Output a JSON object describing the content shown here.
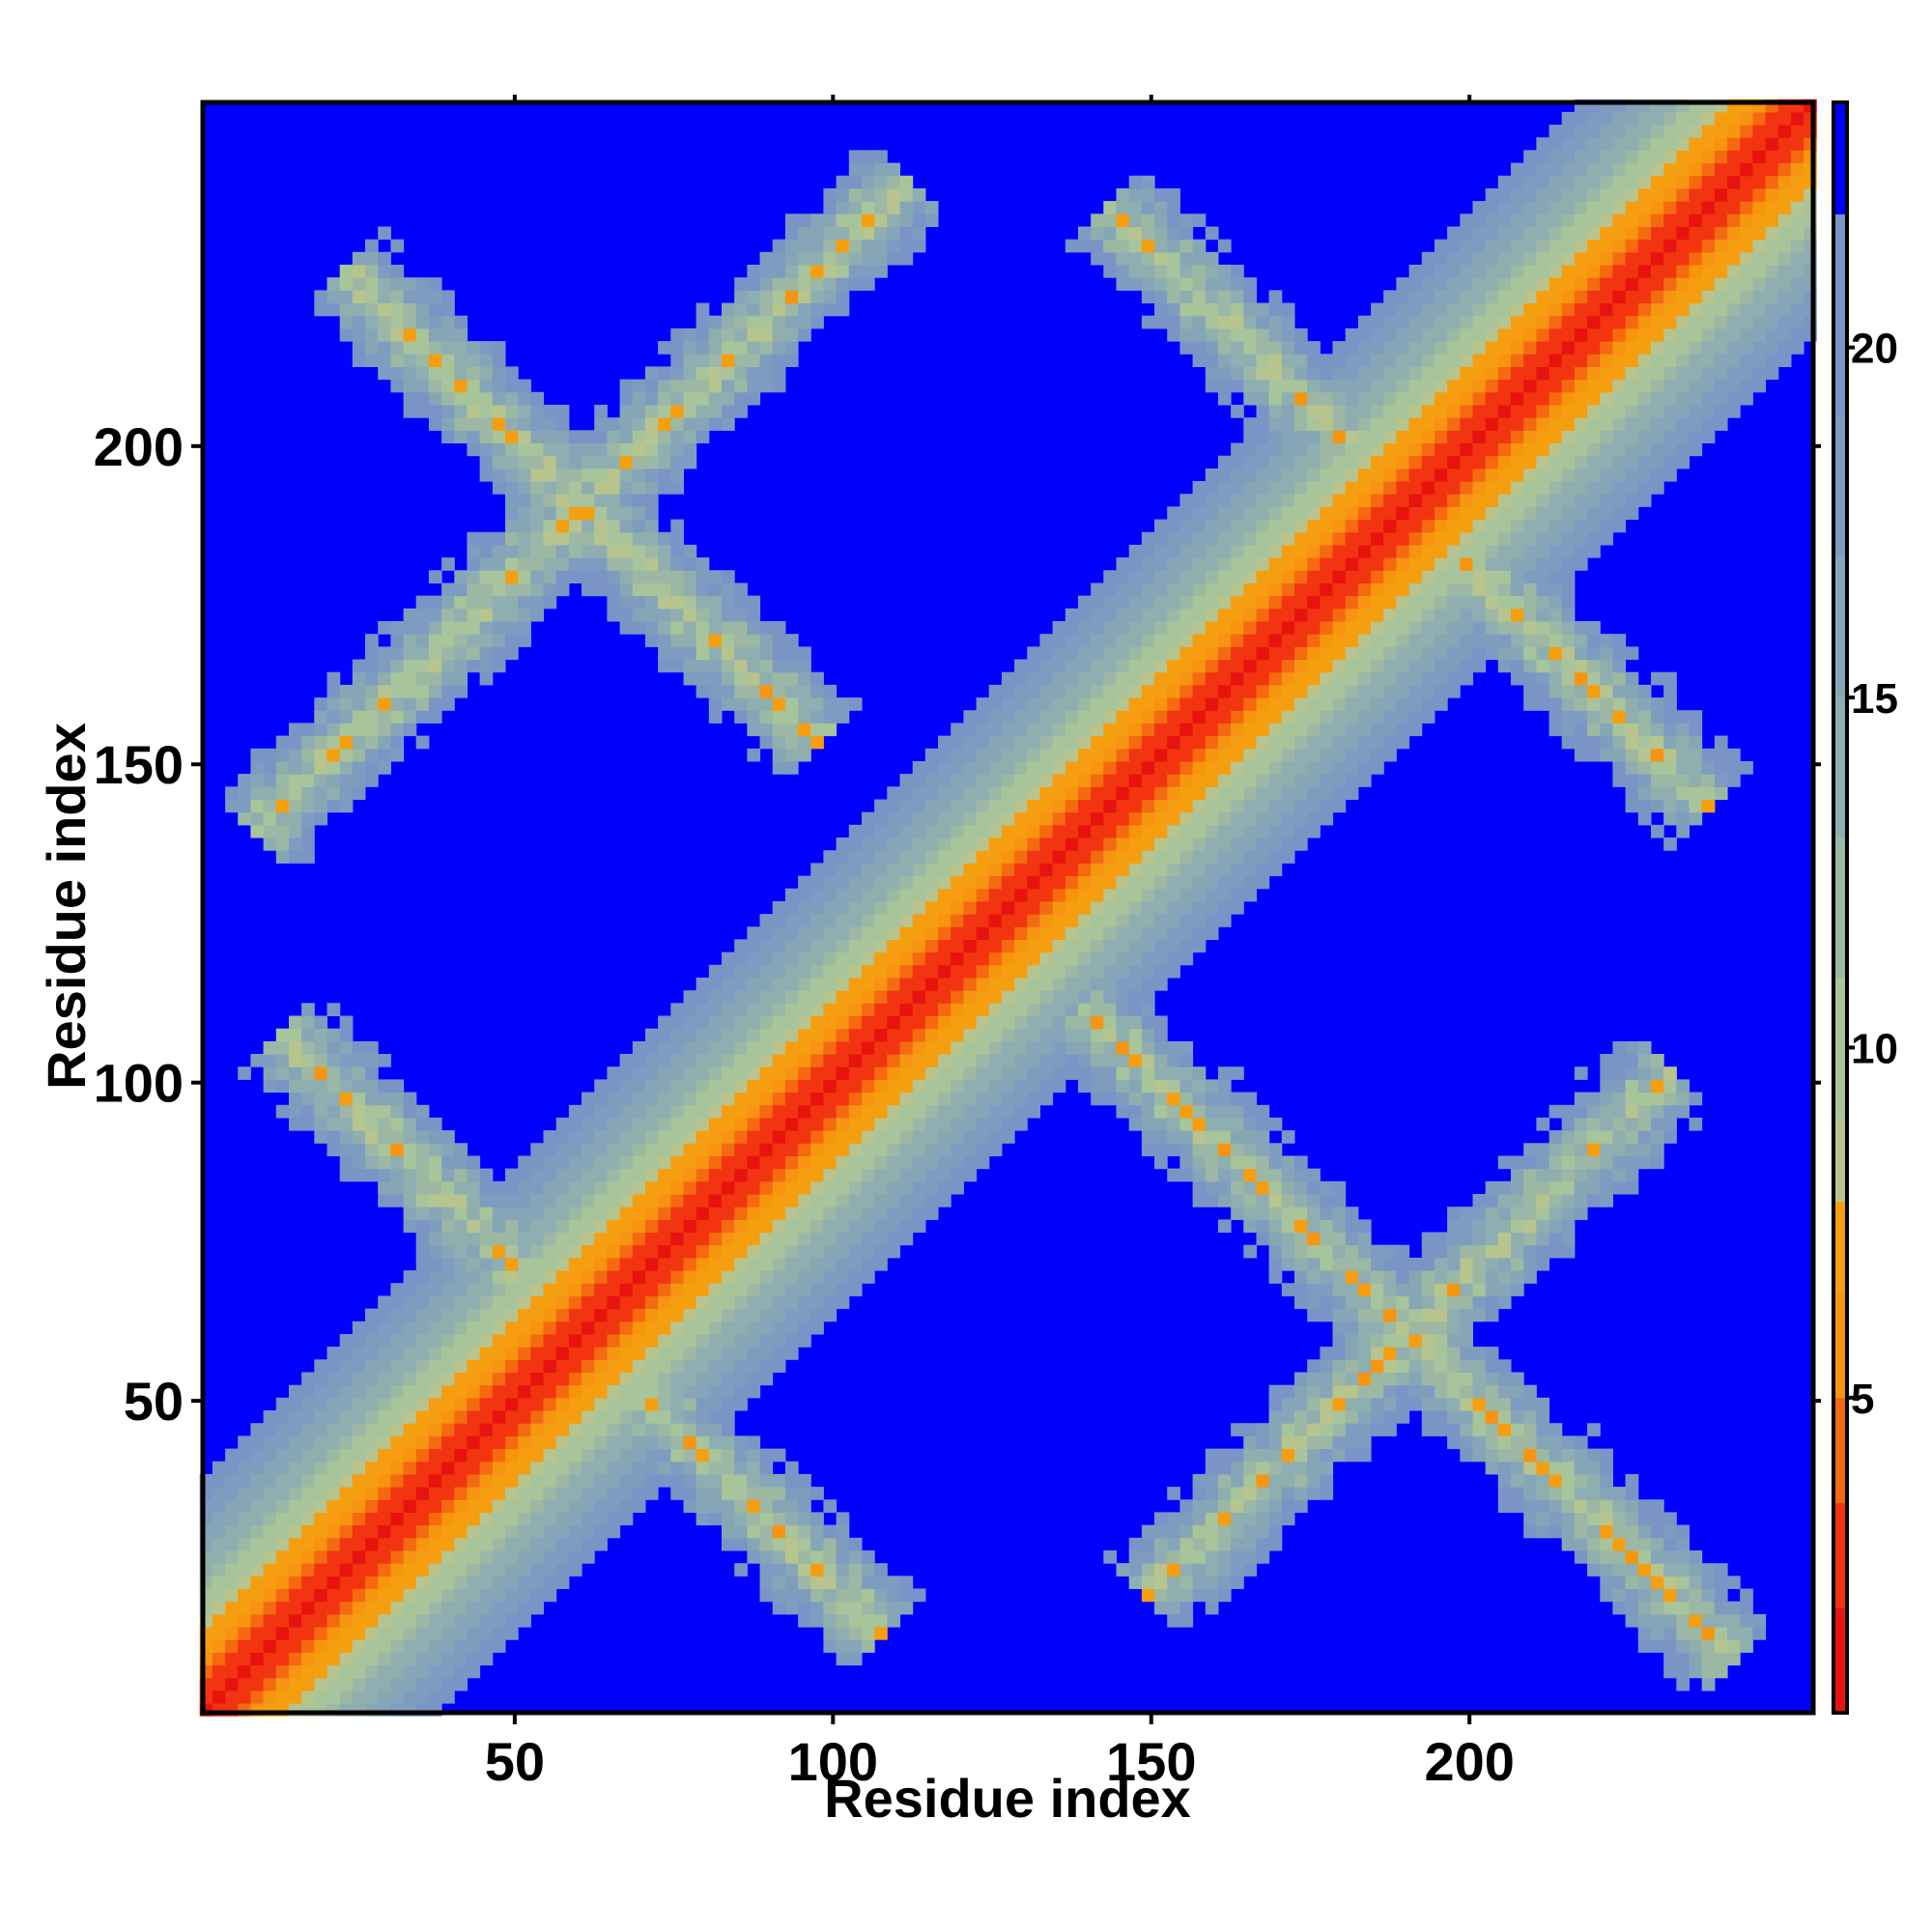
{
  "chart_data": {
    "type": "heatmap",
    "title": "",
    "xlabel": "Residue index",
    "ylabel": "Residue index",
    "xlim": [
      1,
      254
    ],
    "ylim": [
      1,
      254
    ],
    "x_ticks": [
      50,
      100,
      150,
      200
    ],
    "y_ticks": [
      50,
      100,
      150,
      200
    ],
    "colorbar": {
      "range": [
        0.5,
        23.5
      ],
      "ticks": [
        5,
        10,
        15,
        20
      ],
      "bands": [
        {
          "from": 0.5,
          "to": 2.0,
          "color": "#e8120e"
        },
        {
          "from": 2.0,
          "to": 3.5,
          "color": "#f23410"
        },
        {
          "from": 3.5,
          "to": 5.0,
          "color": "#f46a10"
        },
        {
          "from": 5.0,
          "to": 6.5,
          "color": "#f79410"
        },
        {
          "from": 6.5,
          "to": 7.8,
          "color": "#f59e10"
        },
        {
          "from": 7.8,
          "to": 9.0,
          "color": "#b8c48e"
        },
        {
          "from": 9.0,
          "to": 11.0,
          "color": "#a8c49a"
        },
        {
          "from": 11.0,
          "to": 13.0,
          "color": "#9cb8a4"
        },
        {
          "from": 13.0,
          "to": 15.0,
          "color": "#8faeb0"
        },
        {
          "from": 15.0,
          "to": 17.0,
          "color": "#86a6b8"
        },
        {
          "from": 17.0,
          "to": 19.0,
          "color": "#7e9cbf"
        },
        {
          "from": 19.0,
          "to": 21.9,
          "color": "#7a94c6"
        },
        {
          "from": 21.9,
          "to": 23.5,
          "color": "#0000ff"
        }
      ]
    },
    "background_value_color": "#0000ff",
    "structure": {
      "diagonal_band": "low values (red/orange) along i = j, from 1 to 254",
      "cross_contacts": [
        {
          "center": [
            60,
            190
          ],
          "shape": "X",
          "extent": [
            [
              15,
              245
            ],
            [
              100,
              140
            ]
          ]
        },
        {
          "center": [
            190,
            60
          ],
          "shape": "X",
          "extent": [
            [
              140,
              105
            ],
            [
              235,
              12
            ]
          ]
        },
        {
          "center": [
            60,
            60
          ],
          "shape": "X on diagonal",
          "extent": [
            [
              5,
              100
            ],
            [
              105,
              5
            ]
          ]
        },
        {
          "center": [
            190,
            190
          ],
          "shape": "X on diagonal",
          "extent": [
            [
              140,
              240
            ],
            [
              235,
              140
            ]
          ]
        }
      ]
    }
  }
}
